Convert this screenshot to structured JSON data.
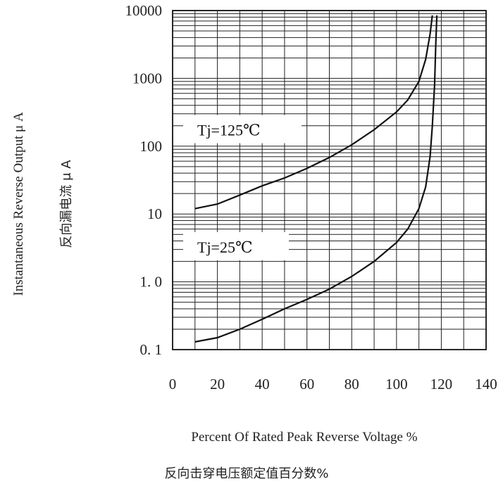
{
  "chart_data": {
    "type": "line",
    "xlabel": "Percent Of  Rated  Peak  Reverse  Voltage %",
    "xlabel_cn": "反向击穿电压额定值百分数%",
    "ylabel": "Instantaneous  Reverse  Output  μ A",
    "ylabel_cn": "反向漏电流  μ A",
    "x_ticks": [
      "0",
      "20",
      "40",
      "60",
      "80",
      "100",
      "120",
      "140"
    ],
    "y_ticks": [
      "0. 1",
      "1. 0",
      "10",
      "100",
      "1000",
      "10000"
    ],
    "xlim": [
      0,
      140
    ],
    "ylim": [
      0.1,
      10000
    ],
    "y_scale": "log",
    "grid": true,
    "series": [
      {
        "name": "Tj=125℃",
        "x": [
          10,
          20,
          30,
          40,
          50,
          60,
          70,
          80,
          90,
          100,
          105,
          110,
          113,
          115,
          116
        ],
        "y": [
          12,
          14,
          19,
          26,
          34,
          47,
          68,
          105,
          175,
          320,
          480,
          900,
          1900,
          4500,
          8500
        ]
      },
      {
        "name": "Tj=25℃",
        "x": [
          10,
          20,
          30,
          40,
          50,
          60,
          70,
          80,
          90,
          100,
          105,
          110,
          113,
          115,
          116,
          117,
          117.5,
          118
        ],
        "y": [
          0.13,
          0.15,
          0.2,
          0.28,
          0.4,
          0.55,
          0.78,
          1.2,
          2,
          3.8,
          6,
          12,
          25,
          70,
          200,
          800,
          3000,
          8500
        ]
      }
    ]
  }
}
